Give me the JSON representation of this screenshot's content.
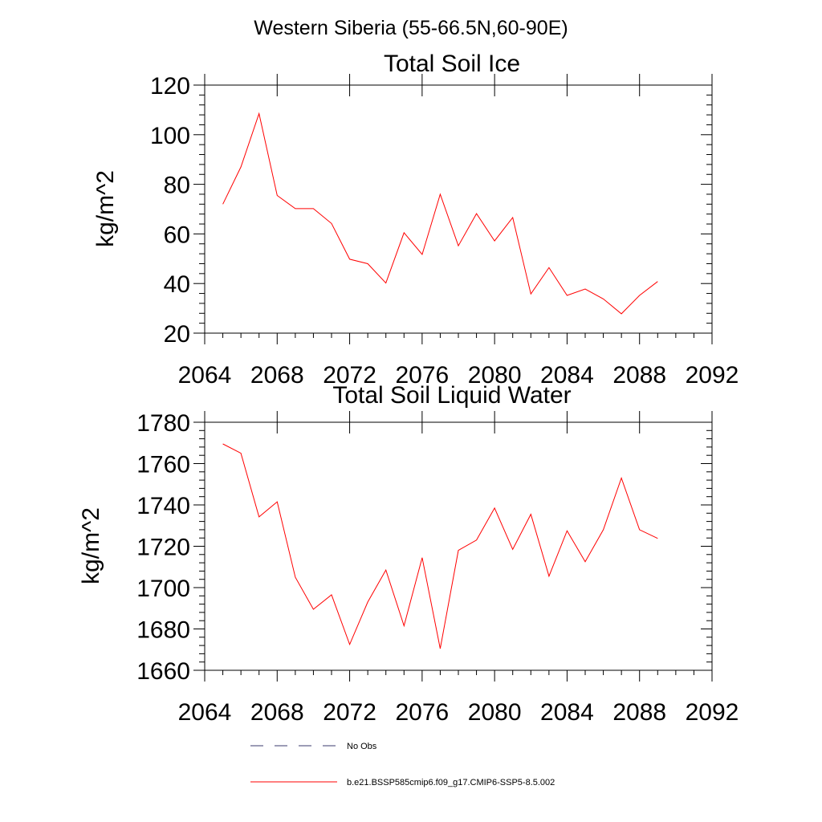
{
  "figure": {
    "main_title": "Western Siberia (55-66.5N,60-90E)"
  },
  "chart_data": [
    {
      "type": "line",
      "title": "Total Soil Ice",
      "xlabel": "",
      "ylabel": "kg/m^2",
      "xlim": [
        2064,
        2092
      ],
      "ylim": [
        20,
        120
      ],
      "x_ticks": [
        2064,
        2068,
        2072,
        2076,
        2080,
        2084,
        2088,
        2092
      ],
      "y_ticks": [
        20,
        40,
        60,
        80,
        100,
        120
      ],
      "grid": false,
      "series": [
        {
          "name": "b.e21.BSSP585cmip6.f09_g17.CMIP6-SSP5-8.5.002",
          "color": "#ff0000",
          "x": [
            2065,
            2066,
            2067,
            2068,
            2069,
            2070,
            2071,
            2072,
            2073,
            2074,
            2075,
            2076,
            2077,
            2078,
            2079,
            2080,
            2081,
            2082,
            2083,
            2084,
            2085,
            2086,
            2087,
            2088,
            2089
          ],
          "values": [
            72.0,
            87.0,
            108.5,
            75.5,
            70.2,
            70.2,
            64.2,
            49.8,
            48.0,
            40.2,
            60.5,
            51.7,
            76.0,
            55.2,
            68.2,
            57.2,
            66.6,
            35.8,
            46.4,
            35.2,
            37.8,
            33.8,
            27.8,
            35.2,
            40.8
          ]
        }
      ]
    },
    {
      "type": "line",
      "title": "Total Soil Liquid Water",
      "xlabel": "",
      "ylabel": "kg/m^2",
      "xlim": [
        2064,
        2092
      ],
      "ylim": [
        1660,
        1780
      ],
      "x_ticks": [
        2064,
        2068,
        2072,
        2076,
        2080,
        2084,
        2088,
        2092
      ],
      "y_ticks": [
        1660,
        1680,
        1700,
        1720,
        1740,
        1760,
        1780
      ],
      "grid": false,
      "series": [
        {
          "name": "b.e21.BSSP585cmip6.f09_g17.CMIP6-SSP5-8.5.002",
          "color": "#ff0000",
          "x": [
            2065,
            2066,
            2067,
            2068,
            2069,
            2070,
            2071,
            2072,
            2073,
            2074,
            2075,
            2076,
            2077,
            2078,
            2079,
            2080,
            2081,
            2082,
            2083,
            2084,
            2085,
            2086,
            2087,
            2088,
            2089
          ],
          "values": [
            1769.5,
            1765.0,
            1734.2,
            1741.5,
            1705.0,
            1689.5,
            1696.5,
            1672.5,
            1693.0,
            1708.5,
            1681.5,
            1714.5,
            1670.5,
            1718.0,
            1723.0,
            1738.5,
            1718.5,
            1735.5,
            1705.5,
            1727.5,
            1712.5,
            1728.0,
            1753.0,
            1728.0,
            1723.8
          ]
        }
      ]
    }
  ],
  "legend": {
    "placement": "bottom-left",
    "entries": [
      {
        "label": "No Obs",
        "style": "dashed",
        "color": "#3a3a6e"
      },
      {
        "label": "b.e21.BSSP585cmip6.f09_g17.CMIP6-SSP5-8.5.002",
        "style": "solid",
        "color": "#ff0000"
      }
    ]
  }
}
